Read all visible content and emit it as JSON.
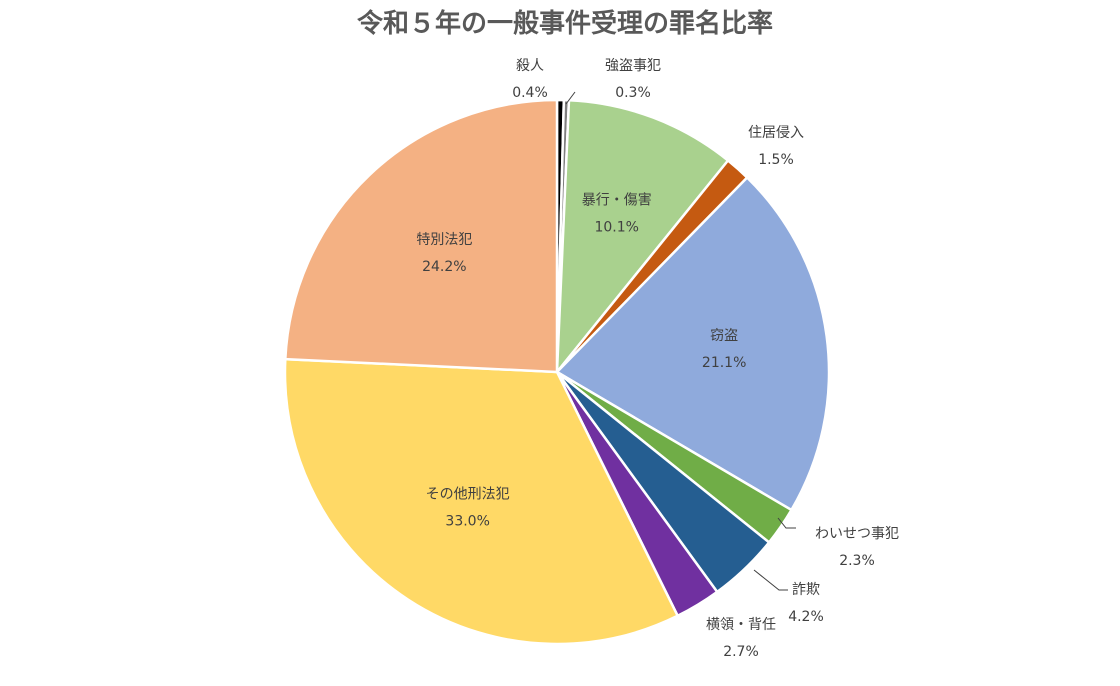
{
  "chart_data": {
    "type": "pie",
    "title": "令和５年の一般事件受理の罪名比率",
    "slices": [
      {
        "name": "殺人",
        "value": 0.4,
        "label": "0.4%",
        "color": "#000000"
      },
      {
        "name": "強盗事犯",
        "value": 0.3,
        "label": "0.3%",
        "color": "#7f7f7f"
      },
      {
        "name": "暴行・傷害",
        "value": 10.1,
        "label": "10.1%",
        "color": "#a9d18e"
      },
      {
        "name": "住居侵入",
        "value": 1.5,
        "label": "1.5%",
        "color": "#c55a11"
      },
      {
        "name": "窃盗",
        "value": 21.1,
        "label": "21.1%",
        "color": "#8faadc"
      },
      {
        "name": "わいせつ事犯",
        "value": 2.3,
        "label": "2.3%",
        "color": "#70ad47"
      },
      {
        "name": "詐欺",
        "value": 4.2,
        "label": "4.2%",
        "color": "#255e91"
      },
      {
        "name": "横領・背任",
        "value": 2.7,
        "label": "2.7%",
        "color": "#7030a0"
      },
      {
        "name": "その他刑法犯",
        "value": 33.0,
        "label": "33.0%",
        "color": "#ffd966"
      },
      {
        "name": "特別法犯",
        "value": 24.2,
        "label": "24.2%",
        "color": "#f4b183"
      }
    ]
  }
}
